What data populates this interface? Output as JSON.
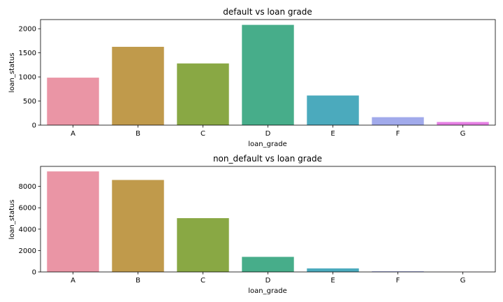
{
  "chart_data": [
    {
      "type": "bar",
      "title": "default vs loan grade",
      "xlabel": "loan_grade",
      "ylabel": "loan_status",
      "categories": [
        "A",
        "B",
        "C",
        "D",
        "E",
        "F",
        "G"
      ],
      "values": [
        985,
        1625,
        1280,
        2080,
        615,
        165,
        65
      ],
      "ylim": [
        0,
        2190
      ],
      "yticks": [
        0,
        500,
        1000,
        1500,
        2000
      ],
      "colors": [
        "#ea95a5",
        "#c09a4b",
        "#89a844",
        "#47ad8a",
        "#4baabd",
        "#a1aaeb",
        "#e57ee3"
      ],
      "grid": false
    },
    {
      "type": "bar",
      "title": "non_default vs loan grade",
      "xlabel": "loan_grade",
      "ylabel": "loan_status",
      "categories": [
        "A",
        "B",
        "C",
        "D",
        "E",
        "F",
        "G"
      ],
      "values": [
        9400,
        8600,
        5030,
        1410,
        330,
        60,
        5
      ],
      "ylim": [
        0,
        9870
      ],
      "yticks": [
        0,
        2000,
        4000,
        6000,
        8000
      ],
      "colors": [
        "#ea95a5",
        "#c09a4b",
        "#89a844",
        "#47ad8a",
        "#4baabd",
        "#a1aaeb",
        "#e57ee3"
      ],
      "grid": false
    }
  ]
}
